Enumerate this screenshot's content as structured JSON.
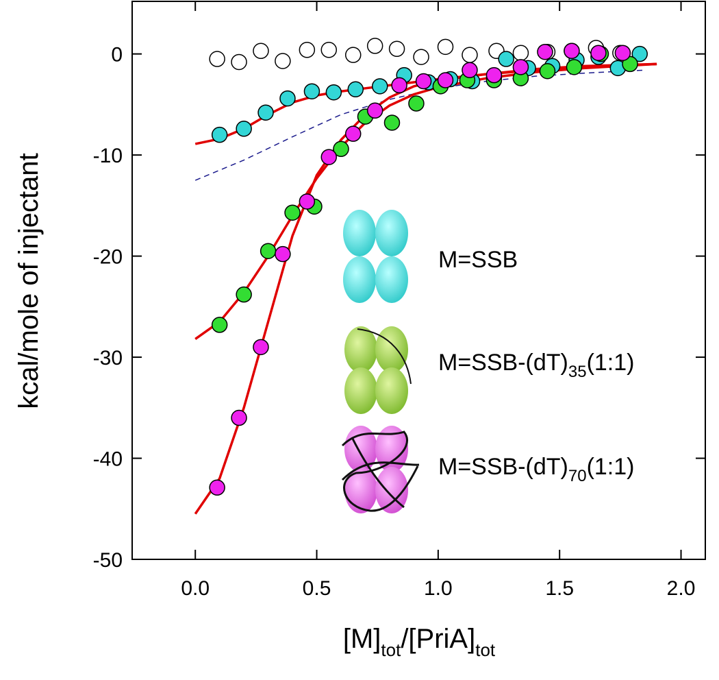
{
  "chart_data": {
    "type": "scatter",
    "xlabel": [
      "[M]",
      "tot",
      "/[PriA]",
      "tot"
    ],
    "ylabel": "kcal/mole of injectant",
    "xlim": [
      -0.26,
      2.1
    ],
    "ylim": [
      -50,
      5.2
    ],
    "xticks": [
      {
        "value": 0,
        "label": "0.0"
      },
      {
        "value": 0.5,
        "label": "0.5"
      },
      {
        "value": 1,
        "label": "1.0"
      },
      {
        "value": 1.5,
        "label": "1.5"
      },
      {
        "value": 2,
        "label": "2.0"
      }
    ],
    "yticks": [
      0,
      -10,
      -20,
      -30,
      -40,
      -50
    ],
    "series": [
      {
        "type": "scatter",
        "color": "none",
        "x": [
          0.09,
          0.18,
          0.27,
          0.36,
          0.46,
          0.55,
          0.65,
          0.74,
          0.83,
          0.93,
          1.03,
          1.13,
          1.24,
          1.34,
          1.45,
          1.55,
          1.65,
          1.75
        ],
        "values": [
          -0.5,
          -0.8,
          0.3,
          -0.7,
          0.4,
          0.4,
          -0.1,
          0.8,
          0.5,
          -0.3,
          0.7,
          -0.1,
          0.3,
          0.1,
          0.2,
          0.3,
          0.6,
          0.1
        ]
      },
      {
        "type": "line",
        "color": "#1a1a8c",
        "dashed": true,
        "x": [
          0,
          0.2,
          0.4,
          0.6,
          0.8,
          1.0,
          1.2,
          1.4,
          1.6,
          1.85
        ],
        "values": [
          -12.5,
          -10.5,
          -8.2,
          -6.0,
          -4.5,
          -3.4,
          -2.7,
          -2.2,
          -1.9,
          -1.6
        ]
      },
      {
        "type": "line",
        "color": "#e00000",
        "x": [
          0,
          0.1,
          0.2,
          0.3,
          0.4,
          0.5,
          0.6,
          0.7,
          0.8,
          0.9,
          1.0,
          1.2,
          1.4,
          1.6,
          1.9
        ],
        "values": [
          -8.9,
          -8.4,
          -7.4,
          -6.0,
          -4.8,
          -4.1,
          -3.7,
          -3.4,
          -3.1,
          -2.8,
          -2.5,
          -2.0,
          -1.6,
          -1.3,
          -1.0
        ]
      },
      {
        "type": "line",
        "color": "#e00000",
        "x": [
          0,
          0.1,
          0.2,
          0.3,
          0.4,
          0.5,
          0.6,
          0.7,
          0.8,
          0.9,
          1.0,
          1.2,
          1.4,
          1.6,
          1.9
        ],
        "values": [
          -28.2,
          -26.5,
          -23.6,
          -20.0,
          -16.0,
          -12.3,
          -9.2,
          -6.8,
          -5.1,
          -4.0,
          -3.3,
          -2.4,
          -1.8,
          -1.4,
          -1.0
        ]
      },
      {
        "type": "line",
        "color": "#e00000",
        "x": [
          0,
          0.1,
          0.2,
          0.3,
          0.4,
          0.5,
          0.6,
          0.7,
          0.8,
          0.9,
          1.0,
          1.2,
          1.4,
          1.6,
          1.9
        ],
        "values": [
          -45.5,
          -42.0,
          -35.0,
          -26.5,
          -18.0,
          -12.0,
          -8.5,
          -6.0,
          -4.3,
          -3.2,
          -2.6,
          -2.0,
          -1.5,
          -1.2,
          -1.0
        ]
      },
      {
        "type": "scatter",
        "color": "#33d6d6",
        "name": [
          "M=SSB"
        ],
        "x": [
          0.1,
          0.2,
          0.29,
          0.38,
          0.48,
          0.57,
          0.66,
          0.76,
          0.86,
          0.96,
          1.05,
          1.14,
          1.23,
          1.28,
          1.37,
          1.47,
          1.57,
          1.66,
          1.74,
          1.83
        ],
        "values": [
          -8.0,
          -7.4,
          -5.8,
          -4.4,
          -3.7,
          -3.8,
          -3.5,
          -3.2,
          -2.1,
          -2.8,
          -2.5,
          -2.7,
          -2.3,
          -0.5,
          -1.4,
          -1.2,
          -0.6,
          -0.3,
          -1.4,
          0.0
        ]
      },
      {
        "type": "scatter",
        "color": "#33dd33",
        "name": [
          "M=SSB-(dT)",
          "35",
          "(1:1)"
        ],
        "x": [
          0.1,
          0.2,
          0.3,
          0.4,
          0.49,
          0.6,
          0.7,
          0.81,
          0.91,
          1.01,
          1.12,
          1.23,
          1.34,
          1.45,
          1.56,
          1.67,
          1.79
        ],
        "values": [
          -26.8,
          -23.8,
          -19.5,
          -15.7,
          -15.1,
          -9.4,
          -6.2,
          -6.8,
          -4.9,
          -3.2,
          -2.6,
          -2.6,
          -2.4,
          -1.7,
          -1.3,
          0.0,
          -1.0
        ]
      },
      {
        "type": "scatter",
        "color": "#ee22ee",
        "name": [
          "M=SSB-(dT)",
          "70",
          "(1:1)"
        ],
        "x": [
          0.09,
          0.18,
          0.27,
          0.36,
          0.46,
          0.55,
          0.65,
          0.74,
          0.84,
          0.94,
          1.03,
          1.13,
          1.23,
          1.34,
          1.44,
          1.55,
          1.66,
          1.76
        ],
        "values": [
          -42.9,
          -36.0,
          -29.0,
          -19.8,
          -14.6,
          -10.2,
          -7.9,
          -5.6,
          -3.1,
          -2.7,
          -2.6,
          -1.6,
          -2.1,
          -1.3,
          0.2,
          0.3,
          0.1,
          0.1
        ]
      }
    ]
  }
}
